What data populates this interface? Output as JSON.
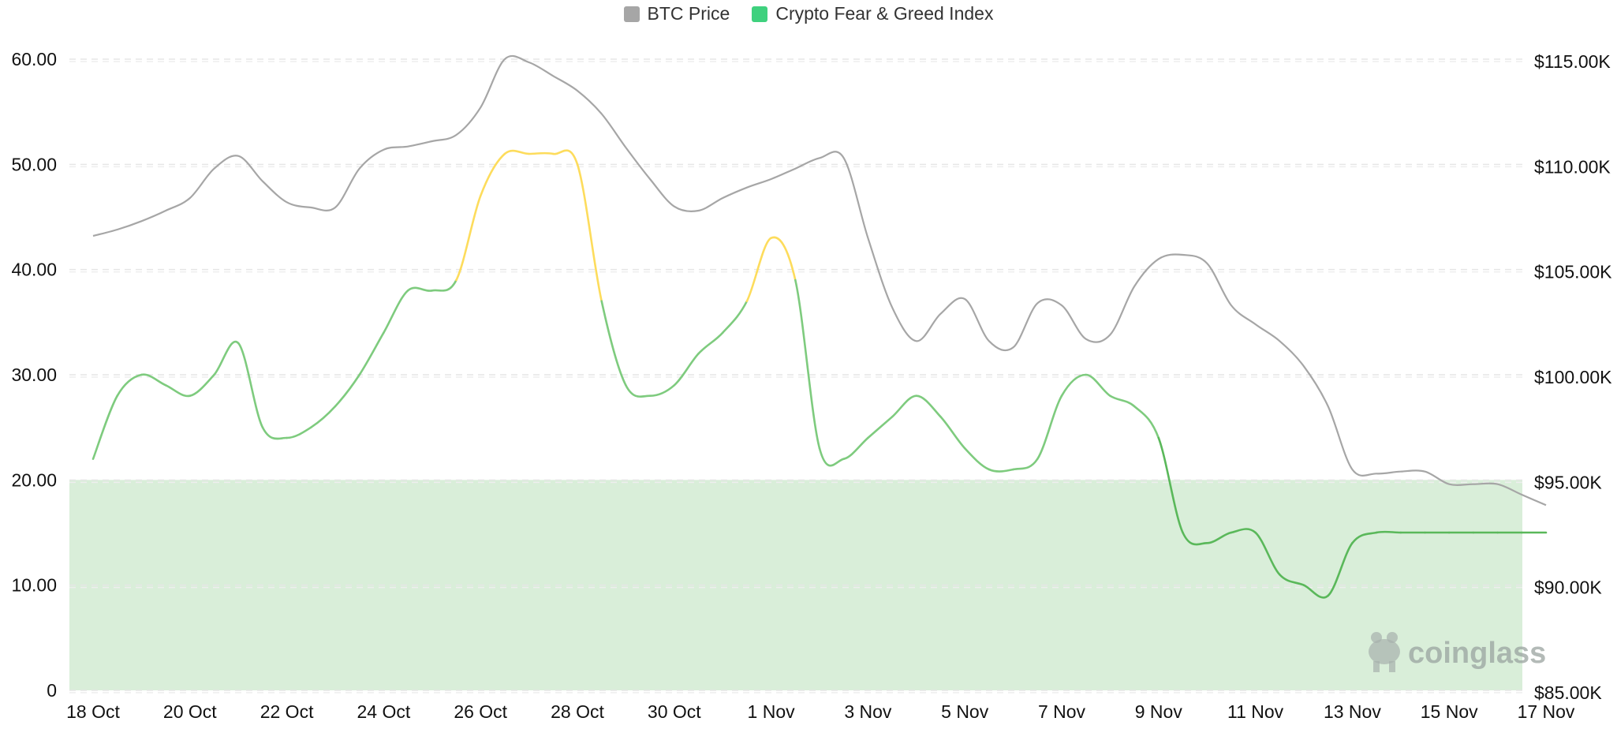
{
  "chart_data": {
    "type": "line",
    "title": "",
    "legend": {
      "placement": "top-center",
      "entries": [
        {
          "name": "BTC Price",
          "color": "#a6a6a6"
        },
        {
          "name": "Crypto Fear & Greed Index",
          "color": "#3fd17e"
        }
      ]
    },
    "x_ticks": [
      "18 Oct",
      "20 Oct",
      "22 Oct",
      "24 Oct",
      "26 Oct",
      "28 Oct",
      "30 Oct",
      "1 Nov",
      "3 Nov",
      "5 Nov",
      "7 Nov",
      "9 Nov",
      "11 Nov",
      "13 Nov",
      "15 Nov",
      "17 Nov"
    ],
    "y_left": {
      "range": [
        0,
        60
      ],
      "ticks": [
        "0",
        "10.00",
        "20.00",
        "30.00",
        "40.00",
        "50.00",
        "60.00"
      ],
      "tick_values": [
        0,
        10,
        20,
        30,
        40,
        50,
        60
      ]
    },
    "y_right": {
      "range": [
        85000,
        115000
      ],
      "ticks": [
        "$85.00K",
        "$90.00K",
        "$95.00K",
        "$100.00K",
        "$105.00K",
        "$110.00K",
        "$115.00K"
      ],
      "tick_values": [
        85000,
        90000,
        95000,
        100000,
        105000,
        110000,
        115000
      ]
    },
    "grid": true,
    "zones": [
      {
        "axis": "left",
        "from": 0,
        "to": 20,
        "color": "#d9eed9"
      }
    ],
    "index_colors": {
      "low": "#7ecb7e",
      "mid": "#fddc5c",
      "extreme": "#5ab85a",
      "mid_threshold": 40,
      "extreme_threshold": 20
    },
    "series": [
      {
        "name": "BTC Price",
        "axis": "right",
        "color": "#a6a6a6",
        "x": [
          0,
          0.5,
          1,
          1.5,
          2,
          2.5,
          3,
          3.5,
          4,
          4.5,
          5,
          5.5,
          6,
          6.5,
          7,
          7.5,
          8,
          8.5,
          9,
          9.5,
          10,
          10.5,
          11,
          11.5,
          12,
          12.5,
          13,
          13.5,
          14,
          14.5,
          15,
          15.5,
          16,
          16.5,
          17,
          17.5,
          18,
          18.5,
          19,
          19.5,
          20,
          20.5,
          21,
          21.5,
          22,
          22.5,
          23,
          23.5,
          24,
          24.5,
          25,
          25.5,
          26,
          26.5,
          27,
          27.5,
          28,
          28.5,
          29,
          29.5,
          30
        ],
        "values": [
          106600,
          106900,
          107300,
          107800,
          108400,
          109800,
          110400,
          109200,
          108200,
          107950,
          107950,
          109800,
          110700,
          110850,
          111100,
          111400,
          112700,
          115000,
          114850,
          114200,
          113500,
          112400,
          110800,
          109300,
          108000,
          107800,
          108400,
          108900,
          109300,
          109800,
          110300,
          110300,
          106500,
          103200,
          101600,
          102900,
          103600,
          101600,
          101300,
          103400,
          103300,
          101700,
          101900,
          104200,
          105500,
          105700,
          105300,
          103300,
          102400,
          101600,
          100400,
          98500,
          95500,
          95300,
          95400,
          95400,
          94800,
          94800,
          94800,
          94300,
          93800
        ]
      },
      {
        "name": "Crypto Fear & Greed Index",
        "axis": "left",
        "color": "#3fd17e",
        "x": [
          0,
          0.5,
          1,
          1.5,
          2,
          2.5,
          3,
          3.5,
          4,
          4.5,
          5,
          5.5,
          6,
          6.5,
          7,
          7.5,
          8,
          8.5,
          9,
          9.5,
          10,
          10.5,
          11,
          11.5,
          12,
          12.5,
          13,
          13.5,
          14,
          14.5,
          15,
          15.5,
          16,
          16.5,
          17,
          17.5,
          18,
          18.5,
          19,
          19.5,
          20,
          20.5,
          21,
          21.5,
          22,
          22.5,
          23,
          23.5,
          24,
          24.5,
          25,
          25.5,
          26,
          26.5,
          27,
          27.5,
          28,
          28.5,
          29,
          29.5,
          30
        ],
        "values": [
          22,
          28,
          30,
          29,
          28,
          30,
          33,
          25,
          24,
          25,
          27,
          30,
          34,
          38,
          38,
          39,
          47,
          51,
          51,
          51,
          50,
          37,
          29,
          28,
          29,
          32,
          34,
          37,
          43,
          39,
          23,
          22,
          24,
          26,
          28,
          26,
          23,
          21,
          21,
          22,
          28,
          30,
          28,
          27,
          24,
          15,
          14,
          15,
          15,
          11,
          10,
          9,
          14,
          15,
          15,
          15,
          15,
          15,
          15,
          15,
          15
        ]
      }
    ]
  },
  "watermark": {
    "text": "coinglass",
    "icon": "coinglass-logo-icon"
  }
}
